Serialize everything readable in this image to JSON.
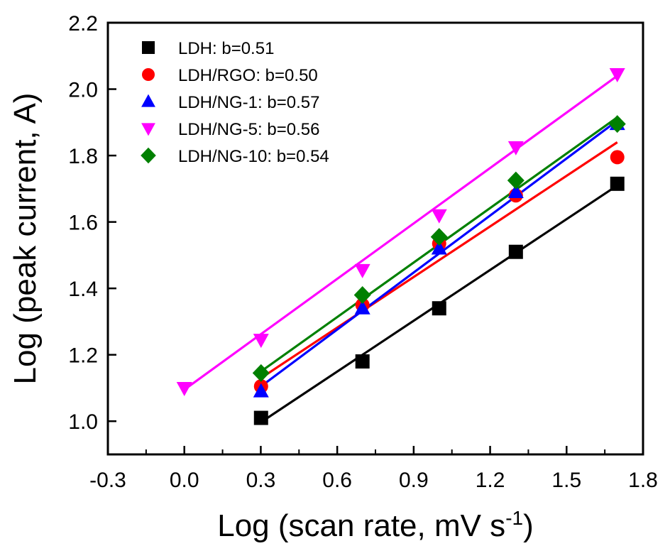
{
  "chart_data": {
    "type": "scatter",
    "xlabel_main": "Log (scan rate, mV s",
    "xlabel_sup": "-1",
    "xlabel_close": ")",
    "ylabel": "Log (peak current, A)",
    "xlim": [
      -0.3,
      1.8
    ],
    "ylim": [
      0.9,
      2.2
    ],
    "xticks": [
      "-0.3",
      "0.0",
      "0.3",
      "0.6",
      "0.9",
      "1.2",
      "1.5",
      "1.8"
    ],
    "xtick_values": [
      -0.3,
      0.0,
      0.3,
      0.6,
      0.9,
      1.2,
      1.5,
      1.8
    ],
    "yticks": [
      "1.0",
      "1.2",
      "1.4",
      "1.6",
      "1.8",
      "2.0",
      "2.2"
    ],
    "ytick_values": [
      1.0,
      1.2,
      1.4,
      1.6,
      1.8,
      2.0,
      2.2
    ],
    "grid": false,
    "legend_position": "top-left",
    "series": [
      {
        "name": "LDH: b=0.51",
        "marker": "square",
        "color": "#000000",
        "x": [
          0.301,
          0.699,
          1.0,
          1.301,
          1.699
        ],
        "y": [
          1.01,
          1.18,
          1.34,
          1.51,
          1.715
        ],
        "fit": [
          [
            0.301,
            0.997
          ],
          [
            1.699,
            1.71
          ]
        ]
      },
      {
        "name": "LDH/RGO: b=0.50",
        "marker": "circle",
        "color": "#ff0000",
        "x": [
          0.301,
          0.699,
          1.0,
          1.301,
          1.699
        ],
        "y": [
          1.105,
          1.35,
          1.535,
          1.68,
          1.795
        ],
        "fit": [
          [
            0.301,
            1.13
          ],
          [
            1.699,
            1.84
          ]
        ]
      },
      {
        "name": "LDH/NG-1: b=0.57",
        "marker": "triangle-up",
        "color": "#0000ff",
        "x": [
          0.301,
          0.699,
          1.0,
          1.301,
          1.699
        ],
        "y": [
          1.09,
          1.34,
          1.52,
          1.69,
          1.895
        ],
        "fit": [
          [
            0.301,
            1.105
          ],
          [
            1.699,
            1.905
          ]
        ]
      },
      {
        "name": "LDH/NG-5: b=0.56",
        "marker": "triangle-down",
        "color": "#ff00ff",
        "x": [
          0.0,
          0.301,
          0.699,
          1.0,
          1.301,
          1.699
        ],
        "y": [
          1.1,
          1.245,
          1.455,
          1.62,
          1.825,
          2.045
        ],
        "fit": [
          [
            0.0,
            1.095
          ],
          [
            1.699,
            2.04
          ]
        ]
      },
      {
        "name": "LDH/NG-10: b=0.54",
        "marker": "diamond",
        "color": "#008000",
        "x": [
          0.301,
          0.699,
          1.0,
          1.301,
          1.699
        ],
        "y": [
          1.145,
          1.38,
          1.555,
          1.725,
          1.895
        ],
        "fit": [
          [
            0.301,
            1.15
          ],
          [
            1.699,
            1.915
          ]
        ]
      }
    ]
  }
}
